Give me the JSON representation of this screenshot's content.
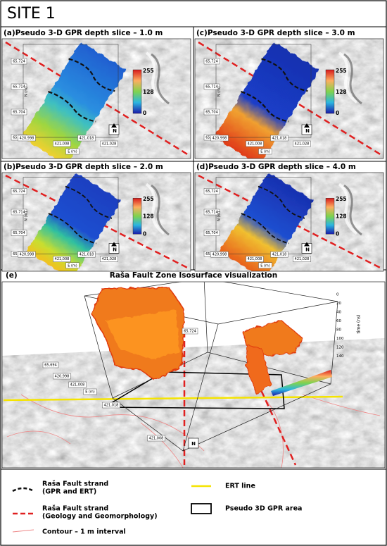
{
  "header": {
    "title": "SITE 1"
  },
  "panels": [
    {
      "label": "(a)",
      "title": "Pseudo 3-D GPR depth slice – 1.0 m"
    },
    {
      "label": "(b)",
      "title": "Pseudo 3-D GPR depth slice – 2.0 m"
    },
    {
      "label": "(c)",
      "title": "Pseudo 3-D GPR depth slice – 3.0 m"
    },
    {
      "label": "(d)",
      "title": "Pseudo 3-D GPR depth slice – 4.0 m"
    }
  ],
  "colorbar": {
    "labels": [
      "255",
      "128",
      "0"
    ]
  },
  "northing_labels": [
    "65,724",
    "65,714",
    "65,704",
    "65,694"
  ],
  "easting_labels": [
    "420,998",
    "421,008",
    "421,018",
    "421,028"
  ],
  "axis_labels": {
    "easting": "E (m)",
    "northing": "N (m)"
  },
  "north_arrow": "N",
  "panel_e": {
    "label": "(e)",
    "title": "Raša Fault Zone Isosurface visualization",
    "time_axis": {
      "label": "time (ns)",
      "ticks": [
        "0",
        "20",
        "40",
        "60",
        "80",
        "100",
        "120",
        "140"
      ]
    },
    "box_labels": [
      "65,694",
      "420,998",
      "421,008",
      "E (m)",
      "421,018",
      "421,008",
      "65,724"
    ]
  },
  "legend": [
    {
      "lines": [
        "Raša Fault strand",
        "(GPR and ERT)"
      ]
    },
    {
      "lines": [
        "Raša Fault strand",
        "(Geology and Geomorphology)"
      ]
    },
    {
      "lines": [
        "Contour – 1 m interval"
      ]
    },
    {
      "lines": [
        "ERT line"
      ]
    },
    {
      "lines": [
        "Pseudo 3D GPR area"
      ]
    }
  ]
}
